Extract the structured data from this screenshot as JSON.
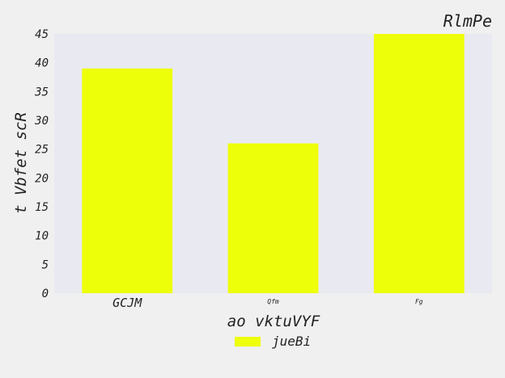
{
  "chart_data": {
    "type": "bar",
    "title": "RlmPe",
    "xlabel": "ao vktuVYF",
    "ylabel": "t Vbfet scR",
    "categories": [
      "GCJM",
      "Qfm",
      "Fg"
    ],
    "series": [
      {
        "name": "jueBi",
        "values": [
          39,
          26,
          45
        ],
        "color": "#eeff0a"
      }
    ],
    "ylim": [
      0,
      45
    ],
    "yticks": [
      0,
      5,
      10,
      15,
      20,
      25,
      30,
      35,
      40,
      45
    ],
    "grid": false,
    "legend_position": "bottom-center",
    "plot_background": "#e9e9f1",
    "page_background": "#f0f0f0"
  }
}
